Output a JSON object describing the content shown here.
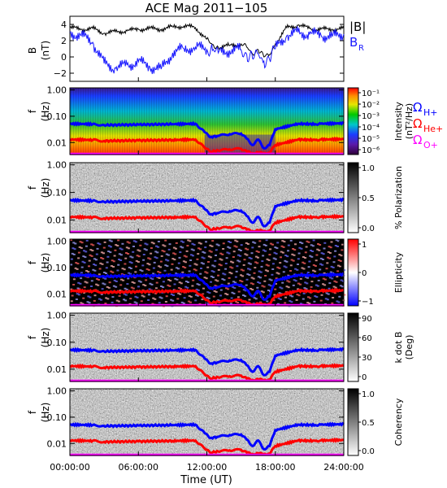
{
  "chart_data": {
    "type": "spectrogram",
    "title": "ACE Mag 2011−105",
    "xlabel": "Time (UT)",
    "x_ticks": [
      "00:00:00",
      "06:00:00",
      "12:00:00",
      "18:00:00",
      "24:00:00"
    ],
    "x_tick_hours": [
      0,
      6,
      12,
      18,
      24
    ],
    "xlim_hours": [
      0,
      24
    ],
    "colors": {
      "B_total": "#000000",
      "B_R": "#1a1aff",
      "omega_H": "#0000ff",
      "omega_He": "#ff0000",
      "omega_O": "#ff00ff"
    },
    "field_panel": {
      "ylabel": "B",
      "yunit": "(nT)",
      "ylim": [
        -3,
        5
      ],
      "yticks": [
        "4",
        "2",
        "0",
        "−2"
      ],
      "ytick_values": [
        4,
        2,
        0,
        -2
      ],
      "legend": [
        "|B|",
        "B",
        "R"
      ],
      "series": [
        {
          "name": "|B|",
          "hours": [
            0,
            1,
            2,
            3,
            4,
            5,
            6,
            7,
            8,
            9,
            10,
            11,
            12,
            12.5,
            13,
            14,
            15,
            15.5,
            16,
            16.5,
            17,
            17.5,
            18,
            19,
            20,
            21,
            22,
            23,
            24
          ],
          "values": [
            3.6,
            3.4,
            3.5,
            2.9,
            3.1,
            3.2,
            3.4,
            3.5,
            3.4,
            3.7,
            3.8,
            3.6,
            2.2,
            1.5,
            1.2,
            1.4,
            1.6,
            1.2,
            0.4,
            0.9,
            0.0,
            0.3,
            1.6,
            3.6,
            3.9,
            3.5,
            3.4,
            3.4,
            3.5
          ]
        },
        {
          "name": "B R",
          "hours": [
            0,
            1,
            2,
            3,
            4,
            5,
            6,
            7,
            8,
            9,
            10,
            11,
            12,
            12.5,
            13,
            14,
            15,
            15.5,
            16,
            16.5,
            17,
            17.5,
            18,
            19,
            20,
            21,
            22,
            23,
            24
          ],
          "values": [
            3.0,
            2.6,
            1.8,
            -0.8,
            -1.4,
            -1.0,
            -0.6,
            -1.2,
            -1.5,
            0.5,
            1.0,
            1.2,
            0.9,
            0.8,
            0.5,
            0.8,
            0.9,
            0.3,
            -0.2,
            0.4,
            -0.5,
            -0.3,
            1.0,
            2.6,
            3.0,
            2.8,
            2.7,
            2.5,
            2.8
          ]
        }
      ]
    },
    "spectral_panels": [
      {
        "id": "intensity",
        "ylabel": "f",
        "yunit": "(Hz)",
        "cbar_title": [
          "Intensity",
          "(nT²/Hz)"
        ],
        "cbar_ticks": [
          "10⁻¹",
          "10⁻²",
          "10⁻³",
          "10⁻⁴",
          "10⁻⁵",
          "10⁻⁶"
        ],
        "colormap": "rainbow"
      },
      {
        "id": "polarization",
        "ylabel": "f",
        "yunit": "(Hz)",
        "cbar_title": [
          "% Polarization"
        ],
        "cbar_ticks": [
          "1.0",
          "0.5",
          "0.0"
        ],
        "colormap": "gray"
      },
      {
        "id": "ellipticity",
        "ylabel": "f",
        "yunit": "(Hz)",
        "cbar_title": [
          "Ellipticity"
        ],
        "cbar_ticks": [
          "1",
          "0",
          "−1"
        ],
        "colormap": "bwr"
      },
      {
        "id": "kdotb",
        "ylabel": "f",
        "yunit": "(Hz)",
        "cbar_title": [
          "k dot B",
          "(Deg)"
        ],
        "cbar_ticks": [
          "90",
          "60",
          "30",
          "0"
        ],
        "colormap": "gray"
      },
      {
        "id": "coherency",
        "ylabel": "f",
        "yunit": "(Hz)",
        "cbar_title": [
          "Coherency"
        ],
        "cbar_ticks": [
          "1.0",
          "0.5",
          "0.0"
        ],
        "colormap": "gray"
      }
    ],
    "freq_axis": {
      "scale": "log",
      "ylim": [
        0.0035,
        1.2
      ],
      "yticks": [
        "1.00",
        "0.10",
        "0.01"
      ],
      "ytick_values": [
        1.0,
        0.1,
        0.01
      ]
    },
    "gyrofrequency_legend": [
      {
        "symbol": "Ω",
        "sub": "H+"
      },
      {
        "symbol": "Ω",
        "sub": "He+"
      },
      {
        "symbol": "Ω",
        "sub": "O+"
      }
    ],
    "gyrofrequencies": [
      {
        "name": "Ω H+",
        "hours": [
          0,
          2,
          3,
          6,
          9,
          11,
          11.8,
          12.3,
          13,
          14,
          15,
          15.5,
          16,
          16.5,
          17,
          17.5,
          18,
          20,
          21.5,
          22,
          24
        ],
        "values_hz": [
          0.052,
          0.05,
          0.046,
          0.048,
          0.05,
          0.052,
          0.025,
          0.016,
          0.018,
          0.021,
          0.022,
          0.014,
          0.008,
          0.013,
          0.006,
          0.008,
          0.032,
          0.052,
          0.05,
          0.052,
          0.054
        ]
      },
      {
        "name": "Ω He+",
        "hours": [
          0,
          2,
          3,
          6,
          9,
          11,
          11.8,
          12.3,
          13,
          14,
          15,
          15.5,
          16,
          16.5,
          17,
          17.5,
          18,
          20,
          21.5,
          22,
          24
        ],
        "values_hz": [
          0.013,
          0.0125,
          0.0115,
          0.012,
          0.0125,
          0.013,
          0.0065,
          0.0045,
          0.005,
          0.0055,
          0.0058,
          0.0045,
          0.004,
          0.0042,
          0.004,
          0.0041,
          0.008,
          0.013,
          0.0125,
          0.013,
          0.0135
        ]
      },
      {
        "name": "Ω O+",
        "hours": [
          0,
          12,
          24
        ],
        "values_hz": [
          0.0037,
          0.0037,
          0.0037
        ]
      }
    ]
  }
}
